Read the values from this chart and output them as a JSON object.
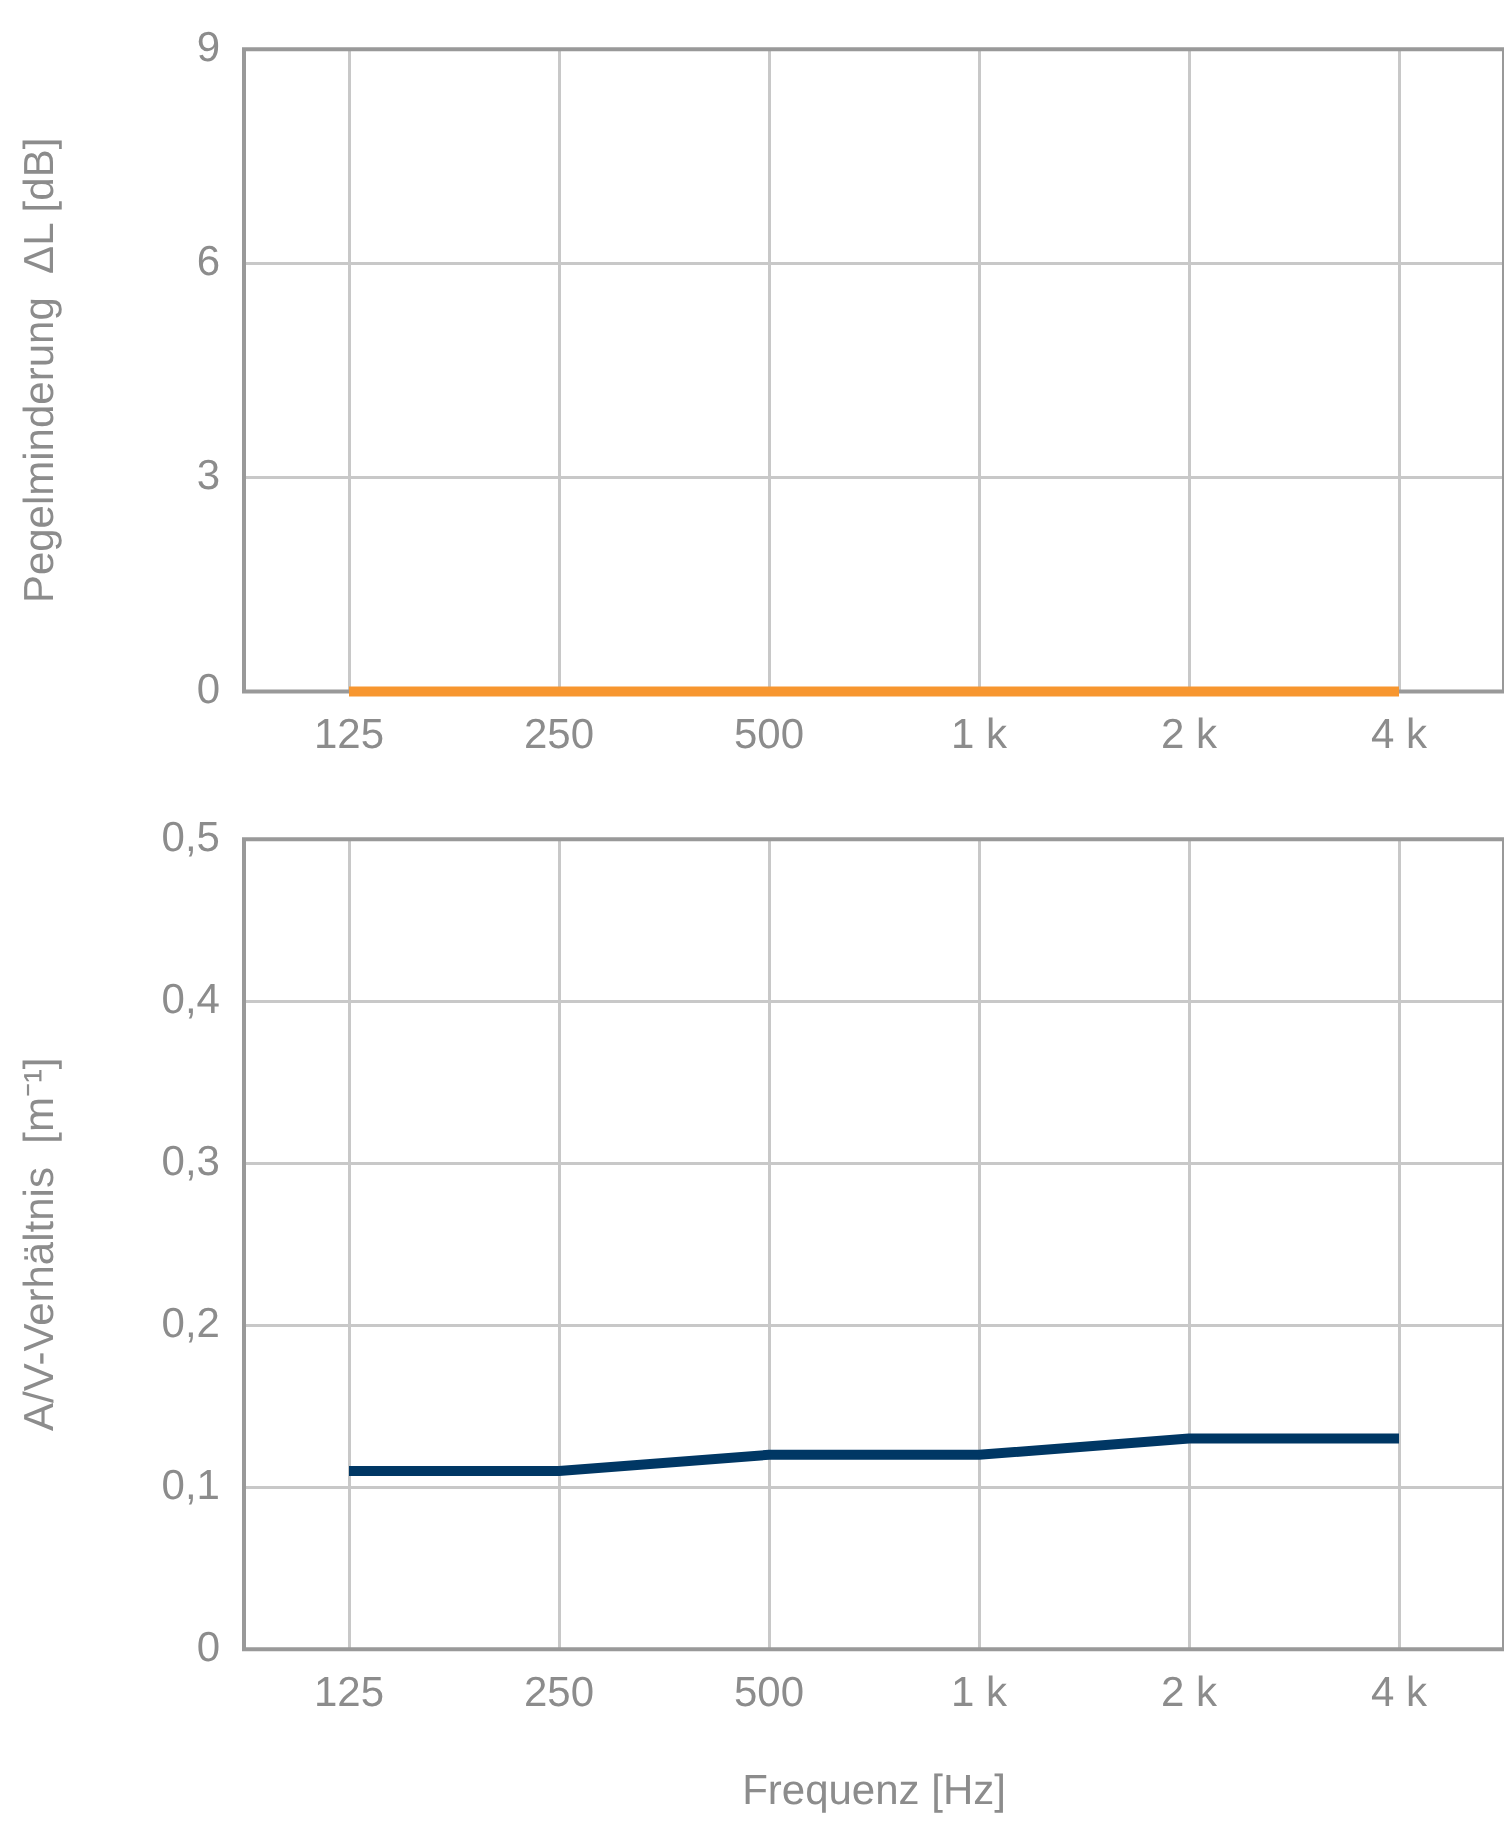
{
  "chart_data": [
    {
      "type": "line",
      "ylabel": "Pegelminderung  ΔL [dB]",
      "categories": [
        "125",
        "250",
        "500",
        "1 k",
        "2 k",
        "4 k"
      ],
      "series": [
        {
          "color": "#f7962f",
          "values": [
            0,
            0,
            0,
            0,
            0,
            0
          ]
        }
      ],
      "ylim": [
        0,
        9
      ],
      "yticks": [
        0,
        3,
        6,
        9
      ],
      "grid": true,
      "legend": false,
      "marker": "none",
      "line_style": "solid"
    },
    {
      "type": "line",
      "ylabel": "A/V-Verhältnis  [m⁻¹]",
      "xlabel": "Frequenz [Hz]",
      "categories": [
        "125",
        "250",
        "500",
        "1 k",
        "2 k",
        "4 k"
      ],
      "series": [
        {
          "color": "#003764",
          "values": [
            0.11,
            0.11,
            0.12,
            0.12,
            0.13,
            0.13
          ]
        }
      ],
      "ylim": [
        0,
        0.5
      ],
      "yticks": [
        0,
        {
          "value": 0.1,
          "label": "0,1"
        },
        {
          "value": 0.2,
          "label": "0,2"
        },
        {
          "value": 0.3,
          "label": "0,3"
        },
        {
          "value": 0.4,
          "label": "0,4"
        },
        {
          "value": 0.5,
          "label": "0,5"
        }
      ],
      "grid": true,
      "legend": false,
      "marker": "none",
      "line_style": "solid"
    }
  ]
}
